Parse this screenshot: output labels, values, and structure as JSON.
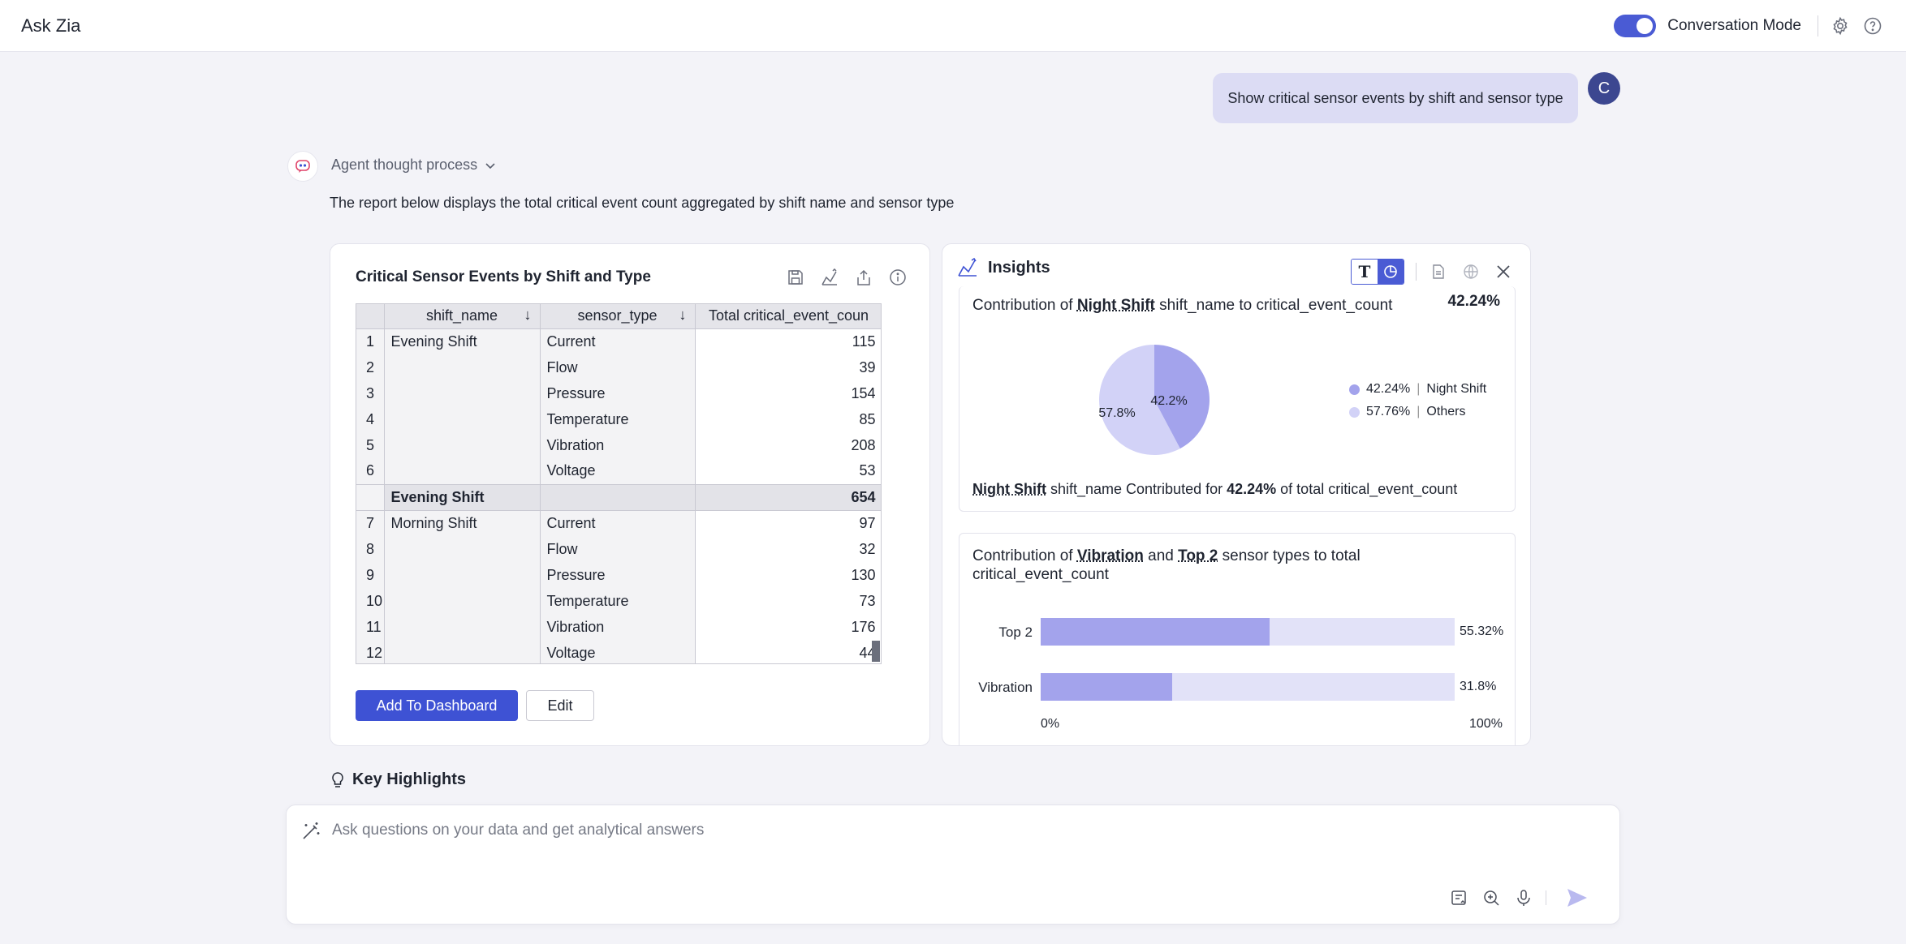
{
  "header": {
    "title": "Ask Zia",
    "conversation_mode_label": "Conversation Mode"
  },
  "user_message": {
    "text": "Show critical sensor events by shift and sensor type",
    "avatar_initial": "C"
  },
  "agent": {
    "thought_label": "Agent thought process",
    "description": "The report below displays the total critical event count aggregated by shift name and sensor type"
  },
  "report": {
    "title": "Critical Sensor Events by Shift and Type",
    "columns": [
      "shift_name",
      "sensor_type",
      "Total critical_event_coun"
    ],
    "rows": [
      {
        "n": "1",
        "shift": "Evening Shift",
        "sensor": "Current",
        "value": "115"
      },
      {
        "n": "2",
        "shift": "",
        "sensor": "Flow",
        "value": "39"
      },
      {
        "n": "3",
        "shift": "",
        "sensor": "Pressure",
        "value": "154"
      },
      {
        "n": "4",
        "shift": "",
        "sensor": "Temperature",
        "value": "85"
      },
      {
        "n": "5",
        "shift": "",
        "sensor": "Vibration",
        "value": "208"
      },
      {
        "n": "6",
        "shift": "",
        "sensor": "Voltage",
        "value": "53"
      },
      {
        "n": "",
        "shift": "Evening Shift",
        "sensor": "",
        "value": "654",
        "subtotal": true
      },
      {
        "n": "7",
        "shift": "Morning Shift",
        "sensor": "Current",
        "value": "97"
      },
      {
        "n": "8",
        "shift": "",
        "sensor": "Flow",
        "value": "32"
      },
      {
        "n": "9",
        "shift": "",
        "sensor": "Pressure",
        "value": "130"
      },
      {
        "n": "10",
        "shift": "",
        "sensor": "Temperature",
        "value": "73"
      },
      {
        "n": "11",
        "shift": "",
        "sensor": "Vibration",
        "value": "176"
      },
      {
        "n": "12",
        "shift": "",
        "sensor": "Voltage",
        "value": "44"
      }
    ],
    "add_button": "Add To Dashboard",
    "edit_button": "Edit"
  },
  "insights": {
    "title": "Insights",
    "type_toggle_text": "T",
    "panel1": {
      "t1": "Contribution of ",
      "t2": "Night Shift",
      "t3": " shift_name to critical_event_count",
      "percent": "42.24%",
      "slice_label_1": "42.2%",
      "slice_label_2": "57.8%",
      "legend": [
        {
          "pct": "42.24%",
          "sep": "|",
          "name": "Night Shift",
          "color": "#a3a3ec"
        },
        {
          "pct": "57.76%",
          "sep": "|",
          "name": "Others",
          "color": "#d2d2f7"
        }
      ],
      "s1": "Night Shift",
      "s2": " shift_name Contributed for ",
      "s3": "42.24%",
      "s4": " of total critical_event_count"
    },
    "panel2": {
      "t1": "Contribution of ",
      "t2": "Vibration",
      "t3": " and ",
      "t4": "Top 2",
      "t5": " sensor types to total",
      "t6": "critical_event_count",
      "bars": [
        {
          "label": "Top 2",
          "value": 55.32,
          "display": "55.32%"
        },
        {
          "label": "Vibration",
          "value": 31.8,
          "display": "31.8%"
        }
      ],
      "axis_min": "0%",
      "axis_max": "100%"
    }
  },
  "chart_data": [
    {
      "type": "pie",
      "labels": [
        "Night Shift",
        "Others"
      ],
      "values": [
        42.24,
        57.76
      ]
    },
    {
      "type": "bar",
      "categories": [
        "Top 2",
        "Vibration"
      ],
      "values": [
        55.32,
        31.8
      ],
      "ylim": [
        0,
        100
      ]
    }
  ],
  "key_highlights": {
    "label": "Key Highlights"
  },
  "ask": {
    "placeholder": "Ask questions on your data and get analytical answers"
  },
  "colors": {
    "accent": "#3e52d4",
    "pie_primary": "#a3a3ec",
    "pie_secondary": "#d2d2f7",
    "bar_track": "#e2e2f8"
  }
}
